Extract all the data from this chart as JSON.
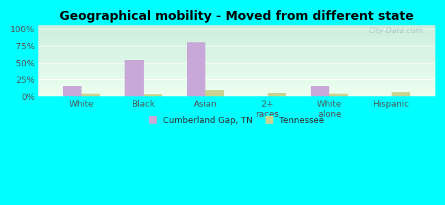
{
  "title": "Geographical mobility - Moved from different state",
  "categories": [
    "White",
    "Black",
    "Asian",
    "2+\nraces",
    "White\nalone",
    "Hispanic"
  ],
  "cumberland_values": [
    15,
    54,
    80,
    0,
    15,
    0
  ],
  "tennessee_values": [
    4,
    3,
    9,
    5,
    4,
    6
  ],
  "cumberland_color": "#c8a8d8",
  "tennessee_color": "#c8d490",
  "yticks": [
    0,
    25,
    50,
    75,
    100
  ],
  "ylabels": [
    "0%",
    "25%",
    "50%",
    "75%",
    "100%"
  ],
  "ylim": [
    0,
    105
  ],
  "bg_top_color": "#cceedd",
  "bg_bottom_color": "#eefff0",
  "outer_background": "#00ffff",
  "watermark": "City-Data.com",
  "legend_labels": [
    "Cumberland Gap, TN",
    "Tennessee"
  ],
  "bar_width": 0.3,
  "figsize": [
    6.5,
    3.0
  ],
  "dpi": 100
}
